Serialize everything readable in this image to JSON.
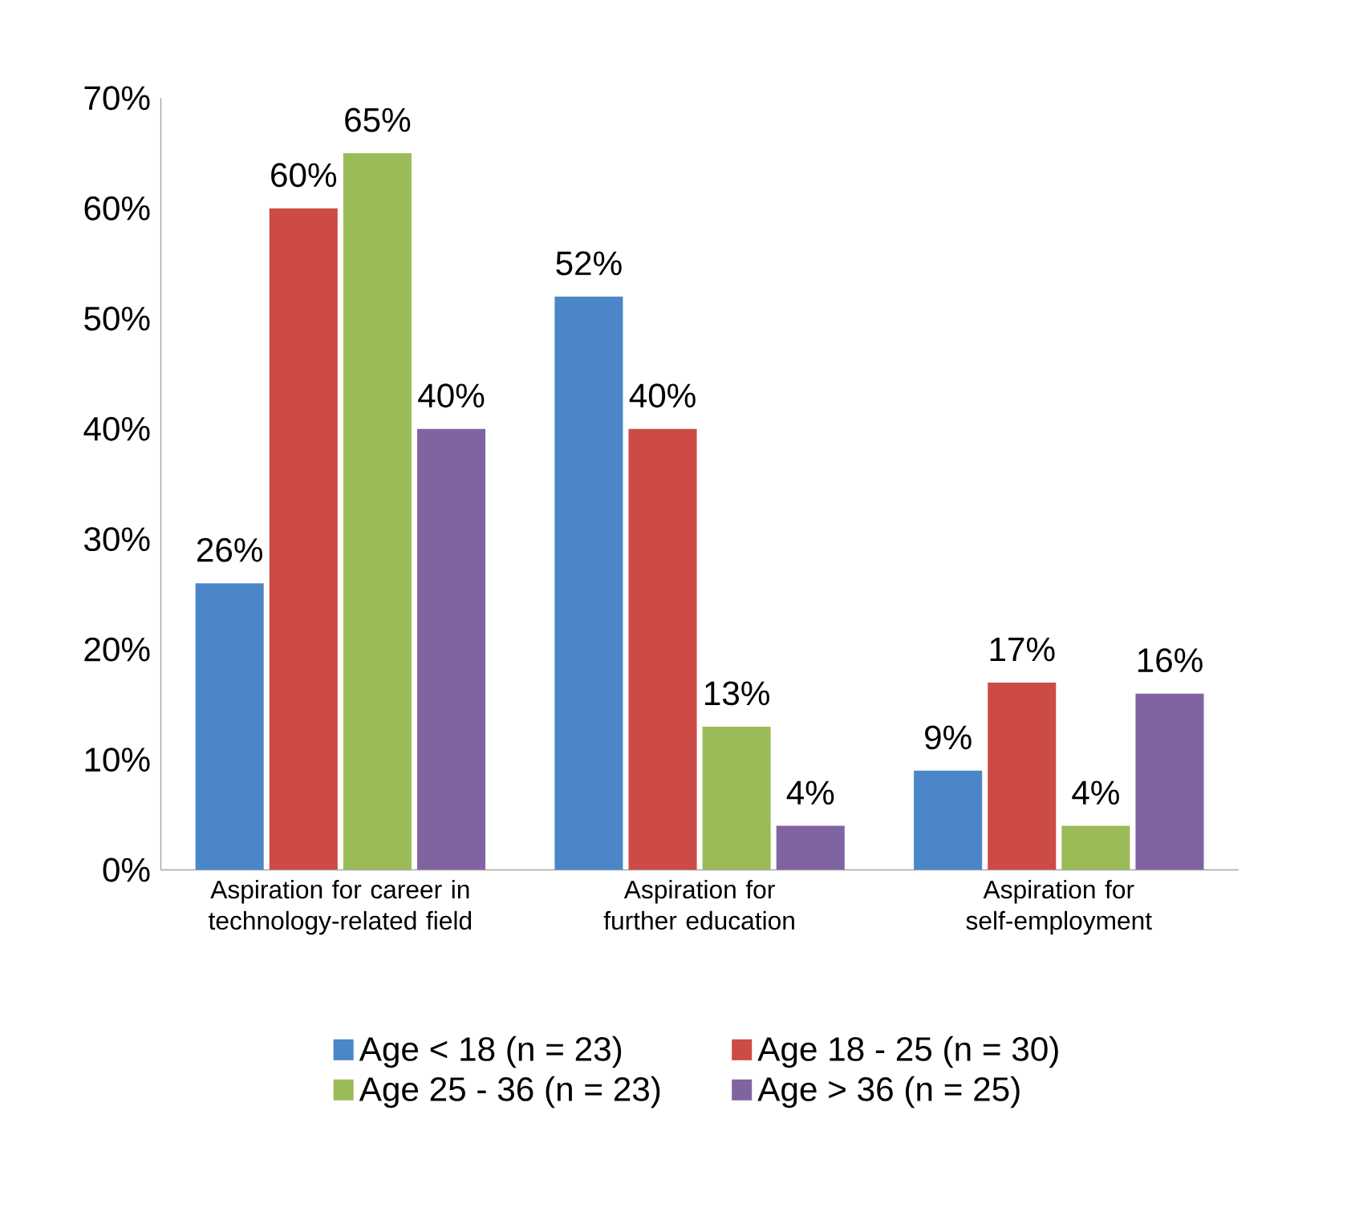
{
  "chart_data": {
    "type": "bar",
    "categories": [
      "Aspiration for career in technology-related field",
      "Aspiration for further education",
      "Aspiration for self-employment"
    ],
    "series": [
      {
        "name": "Age < 18 (n = 23)",
        "color": "#4a86c8",
        "values": [
          26,
          52,
          9
        ],
        "value_labels": [
          "26%",
          "52%",
          "9%"
        ]
      },
      {
        "name": "Age 18 - 25 (n = 30)",
        "color": "#cc4b45",
        "values": [
          60,
          40,
          17
        ],
        "value_labels": [
          "60%",
          "40%",
          "17%"
        ]
      },
      {
        "name": "Age 25 - 36 (n = 23)",
        "color": "#9bbb59",
        "values": [
          65,
          13,
          4
        ],
        "value_labels": [
          "65%",
          "13%",
          "4%"
        ]
      },
      {
        "name": "Age > 36 (n = 25)",
        "color": "#8064a2",
        "values": [
          40,
          4,
          16
        ],
        "value_labels": [
          "40%",
          "4%",
          "16%"
        ]
      }
    ],
    "ylim": [
      0,
      70
    ],
    "yticks": [
      {
        "value": 0,
        "label": "0%"
      },
      {
        "value": 10,
        "label": "10%"
      },
      {
        "value": 20,
        "label": "20%"
      },
      {
        "value": 30,
        "label": "30%"
      },
      {
        "value": 40,
        "label": "40%"
      },
      {
        "value": 50,
        "label": "50%"
      },
      {
        "value": 60,
        "label": "60%"
      },
      {
        "value": 70,
        "label": "70%"
      }
    ],
    "grid": false,
    "legend": "bottom"
  }
}
